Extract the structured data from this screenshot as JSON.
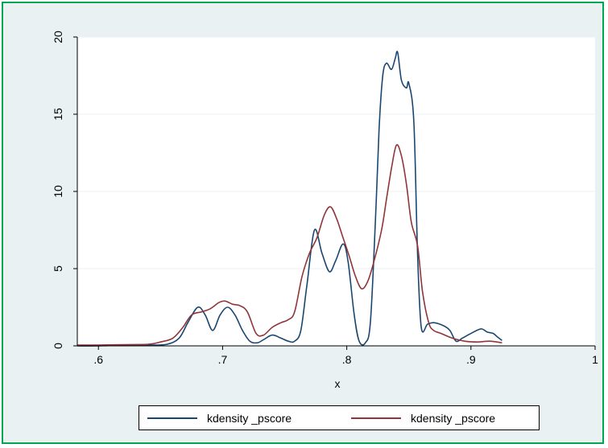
{
  "chart_data": {
    "type": "line",
    "title": "",
    "xlabel": "x",
    "ylabel": "",
    "xlim": [
      0.583,
      1.0
    ],
    "ylim": [
      0,
      20
    ],
    "xticks": [
      {
        "value": 0.6,
        "label": ".6"
      },
      {
        "value": 0.7,
        "label": ".7"
      },
      {
        "value": 0.8,
        "label": ".8"
      },
      {
        "value": 0.9,
        "label": ".9"
      },
      {
        "value": 1.0,
        "label": "1"
      }
    ],
    "yticks": [
      {
        "value": 0,
        "label": "0"
      },
      {
        "value": 5,
        "label": "5"
      },
      {
        "value": 10,
        "label": "10"
      },
      {
        "value": 15,
        "label": "15"
      },
      {
        "value": 20,
        "label": "20"
      }
    ],
    "grid": "horizontal",
    "legend_position": "bottom",
    "series": [
      {
        "name": "kdensity _pscore",
        "color": "#1a476f",
        "points": [
          [
            0.583,
            0.0
          ],
          [
            0.6,
            0.0
          ],
          [
            0.62,
            0.05
          ],
          [
            0.64,
            0.05
          ],
          [
            0.655,
            0.1
          ],
          [
            0.665,
            0.5
          ],
          [
            0.672,
            1.5
          ],
          [
            0.68,
            2.5
          ],
          [
            0.686,
            2.0
          ],
          [
            0.692,
            1.0
          ],
          [
            0.698,
            2.0
          ],
          [
            0.704,
            2.5
          ],
          [
            0.71,
            2.0
          ],
          [
            0.716,
            1.0
          ],
          [
            0.722,
            0.3
          ],
          [
            0.728,
            0.2
          ],
          [
            0.733,
            0.4
          ],
          [
            0.74,
            0.7
          ],
          [
            0.747,
            0.5
          ],
          [
            0.753,
            0.3
          ],
          [
            0.758,
            0.3
          ],
          [
            0.763,
            1.0
          ],
          [
            0.768,
            4.0
          ],
          [
            0.774,
            7.5
          ],
          [
            0.78,
            6.0
          ],
          [
            0.786,
            4.8
          ],
          [
            0.791,
            5.5
          ],
          [
            0.797,
            6.6
          ],
          [
            0.801,
            5.5
          ],
          [
            0.806,
            2.0
          ],
          [
            0.81,
            0.3
          ],
          [
            0.815,
            0.2
          ],
          [
            0.819,
            1.5
          ],
          [
            0.823,
            8.0
          ],
          [
            0.826,
            14.0
          ],
          [
            0.829,
            17.5
          ],
          [
            0.832,
            18.3
          ],
          [
            0.836,
            17.9
          ],
          [
            0.839,
            18.6
          ],
          [
            0.841,
            19.0
          ],
          [
            0.844,
            17.2
          ],
          [
            0.848,
            16.7
          ],
          [
            0.85,
            17.0
          ],
          [
            0.854,
            14.5
          ],
          [
            0.857,
            6.0
          ],
          [
            0.86,
            1.2
          ],
          [
            0.865,
            1.4
          ],
          [
            0.87,
            1.5
          ],
          [
            0.878,
            1.3
          ],
          [
            0.883,
            1.0
          ],
          [
            0.888,
            0.3
          ],
          [
            0.893,
            0.5
          ],
          [
            0.9,
            0.8
          ],
          [
            0.908,
            1.1
          ],
          [
            0.913,
            0.9
          ],
          [
            0.918,
            0.8
          ],
          [
            0.921,
            0.6
          ],
          [
            0.925,
            0.35
          ]
        ]
      },
      {
        "name": "kdensity _pscore",
        "color": "#90353b",
        "points": [
          [
            0.583,
            0.05
          ],
          [
            0.6,
            0.05
          ],
          [
            0.62,
            0.08
          ],
          [
            0.64,
            0.1
          ],
          [
            0.65,
            0.25
          ],
          [
            0.66,
            0.5
          ],
          [
            0.668,
            1.2
          ],
          [
            0.675,
            2.0
          ],
          [
            0.683,
            2.2
          ],
          [
            0.69,
            2.4
          ],
          [
            0.697,
            2.8
          ],
          [
            0.702,
            2.9
          ],
          [
            0.708,
            2.7
          ],
          [
            0.714,
            2.6
          ],
          [
            0.72,
            2.2
          ],
          [
            0.727,
            0.8
          ],
          [
            0.733,
            0.7
          ],
          [
            0.74,
            1.2
          ],
          [
            0.747,
            1.5
          ],
          [
            0.753,
            1.7
          ],
          [
            0.758,
            2.2
          ],
          [
            0.764,
            4.5
          ],
          [
            0.77,
            6.0
          ],
          [
            0.776,
            7.0
          ],
          [
            0.782,
            8.5
          ],
          [
            0.787,
            9.0
          ],
          [
            0.792,
            8.2
          ],
          [
            0.797,
            7.0
          ],
          [
            0.802,
            5.8
          ],
          [
            0.807,
            4.5
          ],
          [
            0.812,
            3.7
          ],
          [
            0.817,
            4.2
          ],
          [
            0.822,
            5.5
          ],
          [
            0.828,
            7.5
          ],
          [
            0.832,
            9.5
          ],
          [
            0.836,
            11.5
          ],
          [
            0.84,
            13.0
          ],
          [
            0.844,
            12.3
          ],
          [
            0.848,
            10.5
          ],
          [
            0.852,
            8.0
          ],
          [
            0.857,
            6.5
          ],
          [
            0.861,
            3.5
          ],
          [
            0.866,
            1.5
          ],
          [
            0.87,
            1.0
          ],
          [
            0.876,
            0.8
          ],
          [
            0.885,
            0.5
          ],
          [
            0.895,
            0.3
          ],
          [
            0.905,
            0.25
          ],
          [
            0.915,
            0.3
          ],
          [
            0.925,
            0.2
          ]
        ]
      }
    ]
  }
}
